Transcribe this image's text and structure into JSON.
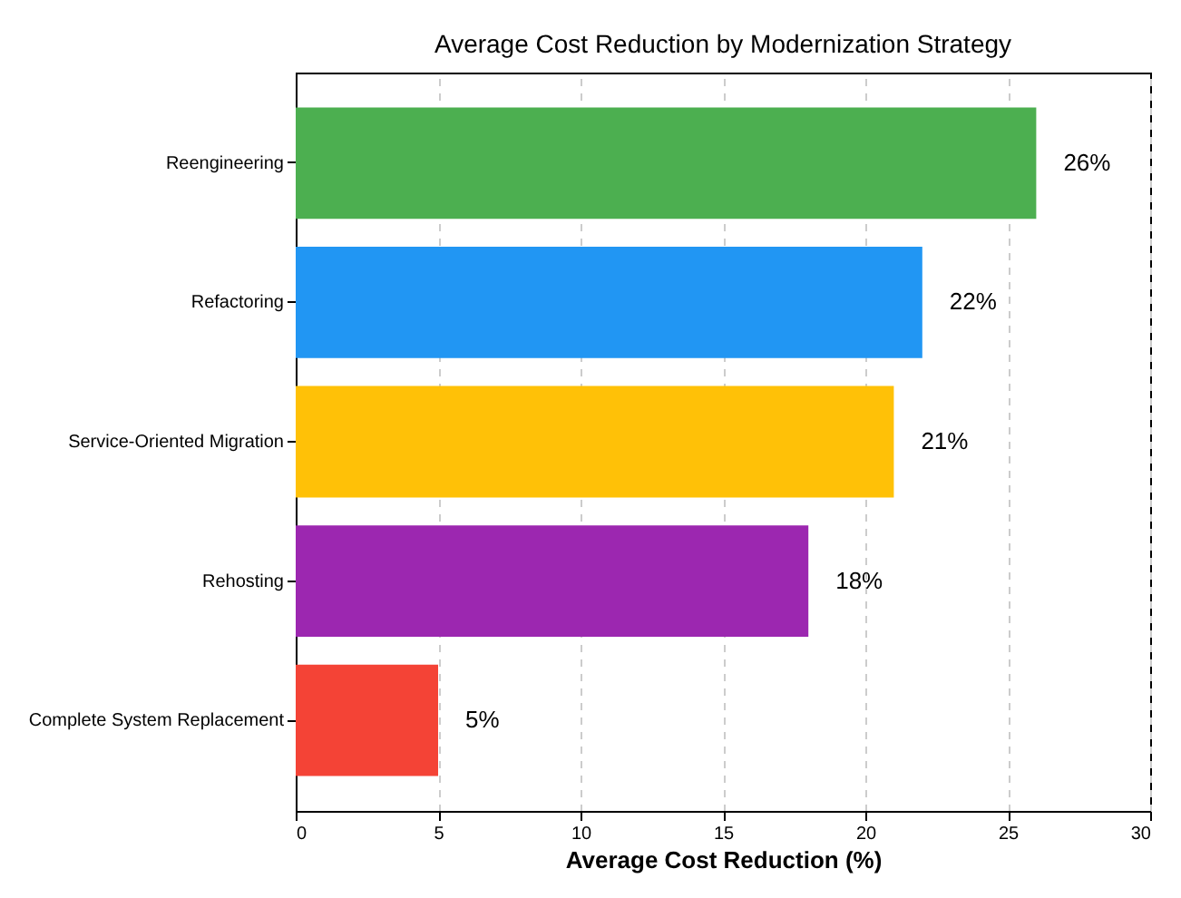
{
  "chart_data": {
    "type": "bar",
    "orientation": "horizontal",
    "title": "Average Cost Reduction by Modernization Strategy",
    "xlabel": "Average Cost Reduction (%)",
    "categories": [
      "Reengineering",
      "Refactoring",
      "Service-Oriented Migration",
      "Rehosting",
      "Complete System Replacement"
    ],
    "values": [
      26,
      22,
      21,
      18,
      5
    ],
    "colors": [
      "#4caf50",
      "#2196f3",
      "#ffc107",
      "#9c27b0",
      "#f44336"
    ],
    "value_labels": [
      "26%",
      "22%",
      "21%",
      "18%",
      "5%"
    ],
    "xlim": [
      0,
      30
    ],
    "xticks": [
      0,
      5,
      10,
      15,
      20,
      25,
      30
    ],
    "grid": "x"
  }
}
